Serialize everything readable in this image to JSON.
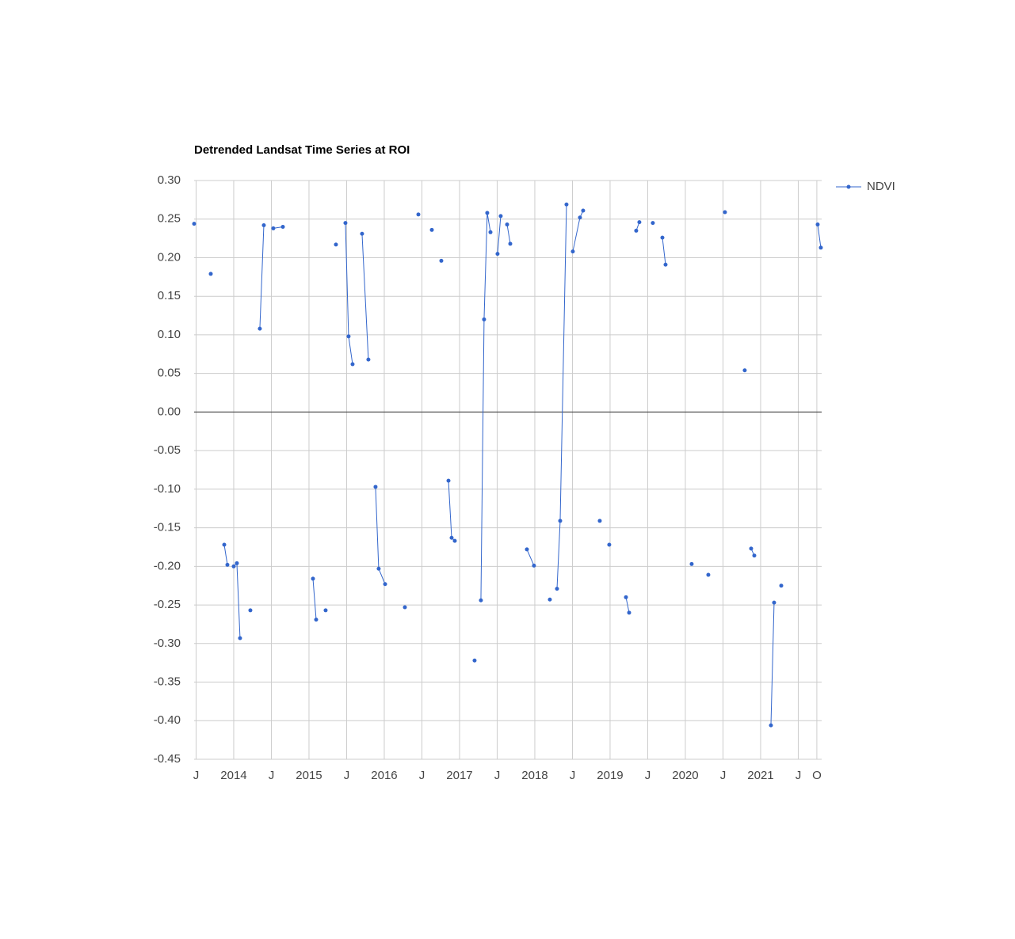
{
  "chart_data": {
    "type": "line",
    "title": "Detrended Landsat Time Series at ROI",
    "legend": "right",
    "grid": true,
    "baseline": 0,
    "series": [
      {
        "name": "NDVI",
        "color": "#3366cc",
        "x": [
          2013.474,
          null,
          2013.695,
          null,
          2013.874,
          2013.916,
          null,
          2014.0,
          2014.042,
          2014.084,
          null,
          2014.221,
          null,
          2014.347,
          2014.4,
          null,
          2014.526,
          2014.653,
          null,
          2015.053,
          2015.095,
          null,
          2015.221,
          null,
          2015.358,
          null,
          2015.484,
          2015.526,
          2015.579,
          null,
          2015.705,
          2015.789,
          null,
          2015.884,
          2015.926,
          2016.011,
          null,
          2016.274,
          null,
          2016.453,
          null,
          2016.632,
          null,
          2016.758,
          null,
          2016.853,
          2016.895,
          2016.937,
          null,
          2017.2,
          null,
          2017.284,
          2017.326,
          2017.368,
          2017.411,
          null,
          2017.505,
          2017.547,
          null,
          2017.632,
          2017.674,
          null,
          2017.895,
          2017.989,
          null,
          2018.2,
          null,
          2018.295,
          2018.337,
          2018.421,
          null,
          2018.505,
          2018.6,
          2018.642,
          null,
          2018.863,
          null,
          2018.989,
          null,
          2019.211,
          2019.253,
          null,
          2019.347,
          2019.389,
          null,
          2019.568,
          null,
          2019.695,
          2019.737,
          null,
          2020.084,
          null,
          2020.305,
          null,
          2020.526,
          null,
          2020.789,
          null,
          2020.874,
          2020.916,
          null,
          2021.137,
          2021.179,
          null,
          2021.274,
          null,
          2021.758,
          2021.8
        ],
        "values": [
          0.244,
          null,
          0.179,
          null,
          -0.172,
          -0.198,
          null,
          -0.2,
          -0.196,
          -0.293,
          null,
          -0.257,
          null,
          0.108,
          0.242,
          null,
          0.238,
          0.24,
          null,
          -0.216,
          -0.269,
          null,
          -0.257,
          null,
          0.217,
          null,
          0.245,
          0.098,
          0.062,
          null,
          0.231,
          0.068,
          null,
          -0.097,
          -0.203,
          -0.223,
          null,
          -0.253,
          null,
          0.256,
          null,
          0.236,
          null,
          0.196,
          null,
          -0.089,
          -0.163,
          -0.167,
          null,
          -0.322,
          null,
          -0.244,
          0.12,
          0.258,
          0.233,
          null,
          0.205,
          0.254,
          null,
          0.243,
          0.218,
          null,
          -0.178,
          -0.199,
          null,
          -0.243,
          null,
          -0.229,
          -0.141,
          0.269,
          null,
          0.208,
          0.252,
          0.261,
          null,
          -0.141,
          null,
          -0.172,
          null,
          -0.24,
          -0.26,
          null,
          0.235,
          0.246,
          null,
          0.245,
          null,
          0.226,
          0.191,
          null,
          -0.197,
          null,
          -0.211,
          null,
          0.259,
          null,
          0.054,
          null,
          -0.177,
          -0.186,
          null,
          -0.406,
          -0.247,
          null,
          -0.225,
          null,
          0.243,
          0.213
        ]
      }
    ],
    "xlim": [
      2013.474,
      2021.811
    ],
    "xticks": [
      {
        "value": 2013.5,
        "label": "J"
      },
      2014,
      {
        "value": 2014.5,
        "label": "J"
      },
      2015,
      {
        "value": 2015.5,
        "label": "J"
      },
      2016,
      {
        "value": 2016.5,
        "label": "J"
      },
      2017,
      {
        "value": 2017.5,
        "label": "J"
      },
      2018,
      {
        "value": 2018.5,
        "label": "J"
      },
      2019,
      {
        "value": 2019.5,
        "label": "J"
      },
      2020,
      {
        "value": 2020.5,
        "label": "J"
      },
      2021,
      {
        "value": 2021.5,
        "label": "J"
      },
      {
        "value": 2021.747,
        "label": "O"
      }
    ],
    "ylim": [
      -0.45,
      0.3
    ],
    "yticks": [
      {
        "value": 0.3,
        "label": "0.30"
      },
      0.25,
      {
        "value": 0.2,
        "label": "0.20"
      },
      0.15,
      {
        "value": 0.1,
        "label": "0.10"
      },
      0.05,
      {
        "value": 0,
        "label": "0.00"
      },
      -0.05,
      {
        "value": -0.1,
        "label": "-0.10"
      },
      -0.15,
      {
        "value": -0.2,
        "label": "-0.20"
      },
      -0.25,
      {
        "value": -0.3,
        "label": "-0.30"
      },
      -0.35,
      {
        "value": -0.4,
        "label": "-0.40"
      },
      -0.45
    ]
  }
}
